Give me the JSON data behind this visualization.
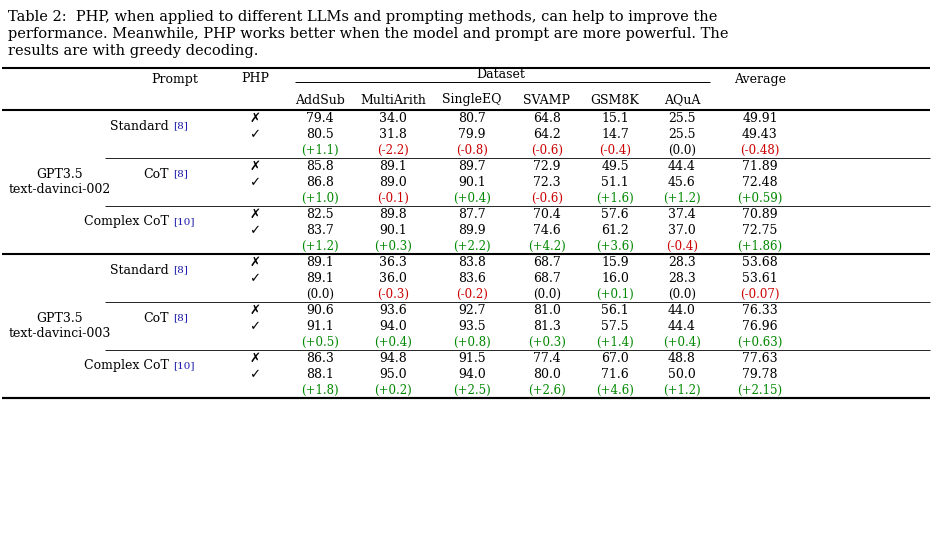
{
  "caption_lines": [
    "Table 2:  PHP, when applied to different LLMs and prompting methods, can help to improve the",
    "performance. Meanwhile, PHP works better when the model and prompt are more powerful. The",
    "results are with greedy decoding."
  ],
  "rows": [
    {
      "model": "GPT3.5\ntext-davinci-002",
      "prompt_base": "Standard",
      "prompt_ref": "[8]",
      "php_no": [
        "79.4",
        "34.0",
        "80.7",
        "64.8",
        "15.1",
        "25.5",
        "49.91"
      ],
      "php_yes": [
        "80.5",
        "31.8",
        "79.9",
        "64.2",
        "14.7",
        "25.5",
        "49.43"
      ],
      "diff": [
        "+1.1",
        "-2.2",
        "-0.8",
        "-0.6",
        "-0.4",
        "0.0",
        "-0.48"
      ],
      "diff_colors": [
        "green",
        "red",
        "red",
        "red",
        "red",
        "black",
        "red"
      ]
    },
    {
      "model": "",
      "prompt_base": "CoT",
      "prompt_ref": "[8]",
      "php_no": [
        "85.8",
        "89.1",
        "89.7",
        "72.9",
        "49.5",
        "44.4",
        "71.89"
      ],
      "php_yes": [
        "86.8",
        "89.0",
        "90.1",
        "72.3",
        "51.1",
        "45.6",
        "72.48"
      ],
      "diff": [
        "+1.0",
        "-0.1",
        "+0.4",
        "-0.6",
        "+1.6",
        "+1.2",
        "+0.59"
      ],
      "diff_colors": [
        "green",
        "red",
        "green",
        "red",
        "green",
        "green",
        "green"
      ]
    },
    {
      "model": "",
      "prompt_base": "Complex CoT",
      "prompt_ref": "[10]",
      "php_no": [
        "82.5",
        "89.8",
        "87.7",
        "70.4",
        "57.6",
        "37.4",
        "70.89"
      ],
      "php_yes": [
        "83.7",
        "90.1",
        "89.9",
        "74.6",
        "61.2",
        "37.0",
        "72.75"
      ],
      "diff": [
        "+1.2",
        "+0.3",
        "+2.2",
        "+4.2",
        "+3.6",
        "-0.4",
        "+1.86"
      ],
      "diff_colors": [
        "green",
        "green",
        "green",
        "green",
        "green",
        "red",
        "green"
      ]
    },
    {
      "model": "GPT3.5\ntext-davinci-003",
      "prompt_base": "Standard",
      "prompt_ref": "[8]",
      "php_no": [
        "89.1",
        "36.3",
        "83.8",
        "68.7",
        "15.9",
        "28.3",
        "53.68"
      ],
      "php_yes": [
        "89.1",
        "36.0",
        "83.6",
        "68.7",
        "16.0",
        "28.3",
        "53.61"
      ],
      "diff": [
        "0.0",
        "-0.3",
        "-0.2",
        "0.0",
        "+0.1",
        "0.0",
        "-0.07"
      ],
      "diff_colors": [
        "black",
        "red",
        "red",
        "black",
        "green",
        "black",
        "red"
      ]
    },
    {
      "model": "",
      "prompt_base": "CoT",
      "prompt_ref": "[8]",
      "php_no": [
        "90.6",
        "93.6",
        "92.7",
        "81.0",
        "56.1",
        "44.0",
        "76.33"
      ],
      "php_yes": [
        "91.1",
        "94.0",
        "93.5",
        "81.3",
        "57.5",
        "44.4",
        "76.96"
      ],
      "diff": [
        "+0.5",
        "+0.4",
        "+0.8",
        "+0.3",
        "+1.4",
        "+0.4",
        "+0.63"
      ],
      "diff_colors": [
        "green",
        "green",
        "green",
        "green",
        "green",
        "green",
        "green"
      ]
    },
    {
      "model": "",
      "prompt_base": "Complex CoT",
      "prompt_ref": "[10]",
      "php_no": [
        "86.3",
        "94.8",
        "91.5",
        "77.4",
        "67.0",
        "48.8",
        "77.63"
      ],
      "php_yes": [
        "88.1",
        "95.0",
        "94.0",
        "80.0",
        "71.6",
        "50.0",
        "79.78"
      ],
      "diff": [
        "+1.8",
        "+0.2",
        "+2.5",
        "+2.6",
        "+4.6",
        "+1.2",
        "+2.15"
      ],
      "diff_colors": [
        "green",
        "green",
        "green",
        "green",
        "green",
        "green",
        "green"
      ]
    }
  ],
  "model_spans": [
    {
      "label": "GPT3.5\ntext-davinci-002",
      "start": 0,
      "end": 3
    },
    {
      "label": "GPT3.5\ntext-davinci-003",
      "start": 3,
      "end": 6
    }
  ],
  "col_names": [
    "AddSub",
    "MultiArith",
    "SingleEQ",
    "SVAMP",
    "GSM8K",
    "AQuA"
  ],
  "font_size": 9.0,
  "caption_font_size": 10.5,
  "ref_color": "#1a1aaa",
  "green_color": "#008800",
  "red_color": "#cc0000",
  "black_color": "#000000",
  "bg_color": "#ffffff"
}
